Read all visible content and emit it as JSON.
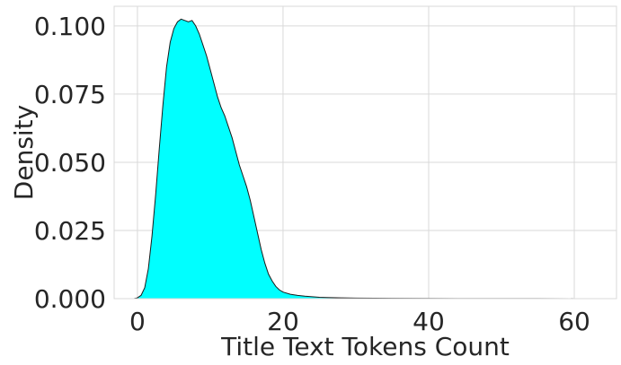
{
  "chart_data": {
    "type": "area",
    "title": "",
    "xlabel": "Title Text Tokens Count",
    "ylabel": "Density",
    "xlim": [
      -3.2,
      65.8
    ],
    "ylim": [
      0.0,
      0.1072
    ],
    "xticks": [
      0,
      20,
      40,
      60
    ],
    "xtick_labels": [
      "0",
      "20",
      "40",
      "60"
    ],
    "yticks": [
      0.0,
      0.025,
      0.05,
      0.075,
      0.1
    ],
    "ytick_labels": [
      "0.000",
      "0.025",
      "0.050",
      "0.075",
      "0.100"
    ],
    "grid": true,
    "fill_color": "#00FFFF",
    "line_color": "#1a1a1a",
    "series": [
      {
        "x": [
          -0.5,
          0,
          0.5,
          1,
          1.5,
          2,
          2.5,
          3,
          3.5,
          4,
          4.5,
          5,
          5.5,
          6,
          6.5,
          7,
          7.5,
          8,
          8.5,
          9,
          9.5,
          10,
          10.5,
          11,
          11.5,
          12,
          12.5,
          13,
          13.5,
          14,
          14.5,
          15,
          15.5,
          16,
          16.5,
          17,
          17.5,
          18,
          18.5,
          19,
          19.5,
          20,
          21,
          22,
          23,
          24,
          25,
          26,
          28,
          30,
          35,
          40,
          45,
          50,
          55,
          60,
          62.5
        ],
        "y": [
          0.0,
          0.0003,
          0.0012,
          0.004,
          0.011,
          0.023,
          0.038,
          0.055,
          0.071,
          0.085,
          0.094,
          0.099,
          0.1015,
          0.1025,
          0.102,
          0.1015,
          0.102,
          0.1,
          0.097,
          0.093,
          0.089,
          0.084,
          0.079,
          0.074,
          0.07,
          0.067,
          0.063,
          0.059,
          0.054,
          0.049,
          0.045,
          0.041,
          0.036,
          0.03,
          0.024,
          0.018,
          0.013,
          0.009,
          0.0065,
          0.0045,
          0.0032,
          0.0024,
          0.0016,
          0.0012,
          0.0009,
          0.0007,
          0.0005,
          0.0004,
          0.0003,
          0.0002,
          0.00012,
          8e-05,
          5e-05,
          4e-05,
          3e-05,
          2e-05,
          0.0
        ]
      }
    ]
  }
}
